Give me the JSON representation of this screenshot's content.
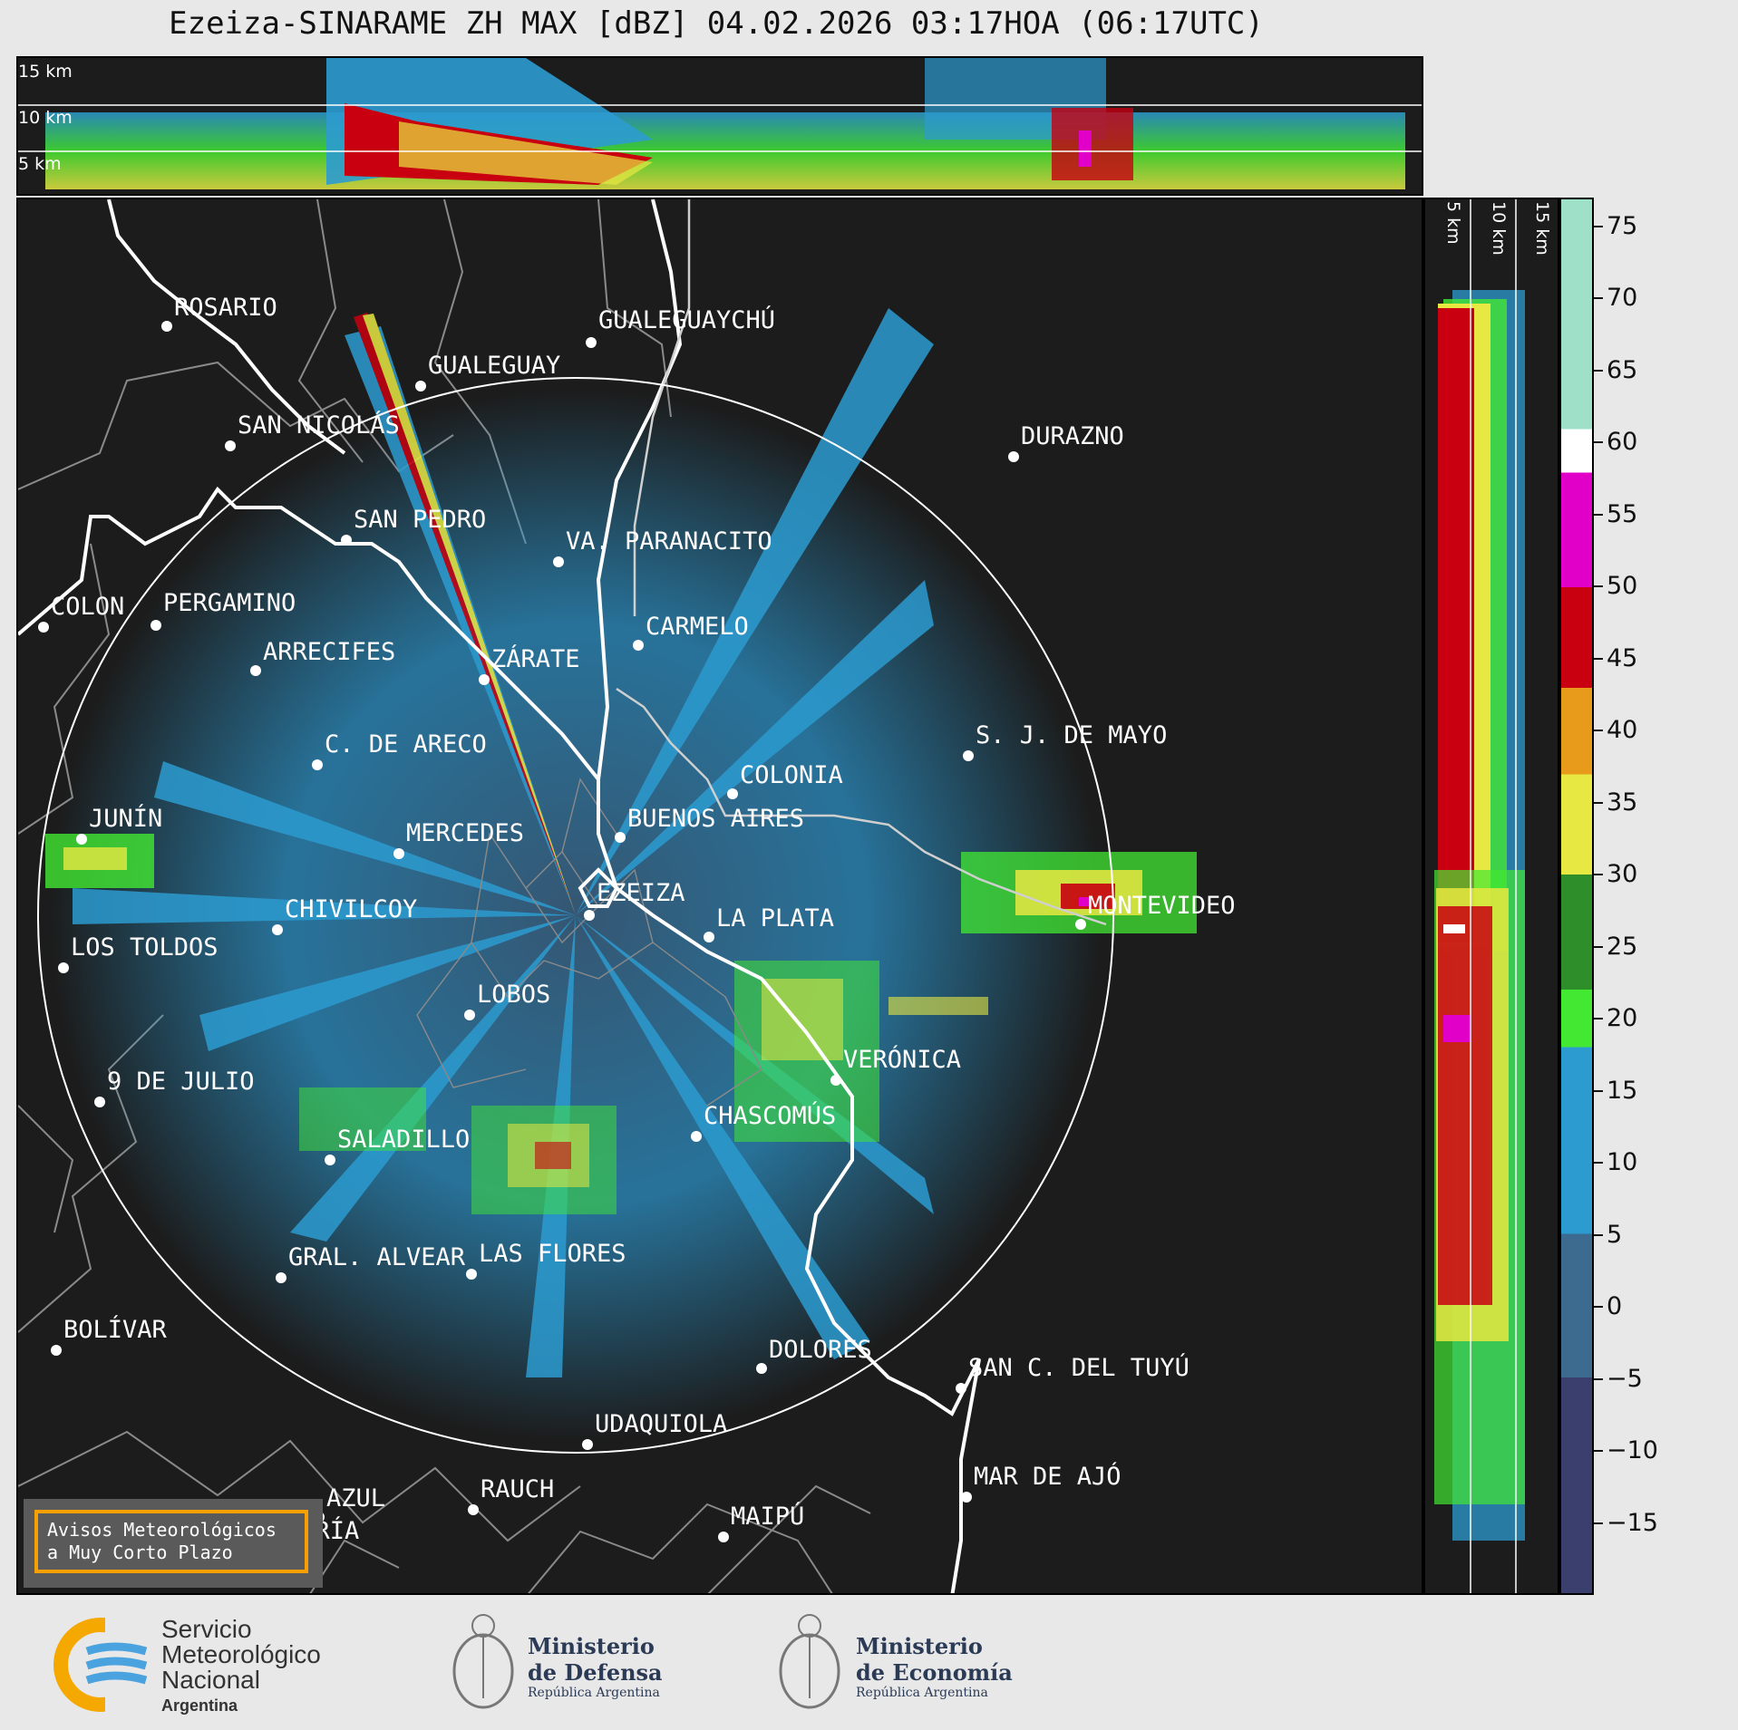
{
  "title": "Ezeiza-SINARAME ZH MAX [dBZ] 04.02.2026 03:17HOA (06:17UTC)",
  "top_panel_labels": [
    "15 km",
    "10 km",
    "5 km"
  ],
  "side_panel_labels": [
    "5 km",
    "10 km",
    "15 km"
  ],
  "cities": [
    {
      "name": "ROSARIO"
    },
    {
      "name": "GUALEGUAYCHÚ"
    },
    {
      "name": "GUALEGUAY"
    },
    {
      "name": "SAN NICOLÁS"
    },
    {
      "name": "DURAZNO"
    },
    {
      "name": "SAN PEDRO"
    },
    {
      "name": "VA. PARANACITO"
    },
    {
      "name": "COLON"
    },
    {
      "name": "PERGAMINO"
    },
    {
      "name": "CARMELO"
    },
    {
      "name": "ARRECIFES"
    },
    {
      "name": "ZÁRATE"
    },
    {
      "name": "C. DE ARECO"
    },
    {
      "name": "S. J. DE MAYO"
    },
    {
      "name": "COLONIA"
    },
    {
      "name": "JUNÍN"
    },
    {
      "name": "BUENOS AIRES"
    },
    {
      "name": "MERCEDES"
    },
    {
      "name": "EZEIZA"
    },
    {
      "name": "MONTEVIDEO"
    },
    {
      "name": "CHIVILCOY"
    },
    {
      "name": "LA PLATA"
    },
    {
      "name": "LOS TOLDOS"
    },
    {
      "name": "LOBOS"
    },
    {
      "name": "VERÓNICA"
    },
    {
      "name": "9 DE JULIO"
    },
    {
      "name": "CHASCOMÚS"
    },
    {
      "name": "SALADILLO"
    },
    {
      "name": "GRAL. ALVEAR"
    },
    {
      "name": "LAS FLORES"
    },
    {
      "name": "BOLÍVAR"
    },
    {
      "name": "DOLORES"
    },
    {
      "name": "SAN C. DEL TUYÚ"
    },
    {
      "name": "UDAQUIOLA"
    },
    {
      "name": "MAR DE AJÓ"
    },
    {
      "name": "AZUL"
    },
    {
      "name": "RAUCH"
    },
    {
      "name": "MAIPÚ"
    },
    {
      "name": "OLAVARRÍA"
    }
  ],
  "colorbar": {
    "unit": "dBZ",
    "ticks": [
      "75",
      "70",
      "65",
      "60",
      "55",
      "50",
      "45",
      "40",
      "35",
      "30",
      "25",
      "20",
      "15",
      "10",
      "5",
      "0",
      "−5",
      "−10",
      "−15"
    ],
    "stops": [
      {
        "from": -20,
        "to": -5,
        "color": "#3a3f6e"
      },
      {
        "from": -5,
        "to": 5,
        "color": "#3d6a8f"
      },
      {
        "from": 5,
        "to": 18,
        "color": "#2c9bd0"
      },
      {
        "from": 18,
        "to": 22,
        "color": "#42e832"
      },
      {
        "from": 22,
        "to": 30,
        "color": "#2e8f2a"
      },
      {
        "from": 30,
        "to": 37,
        "color": "#e8e842"
      },
      {
        "from": 37,
        "to": 43,
        "color": "#e89a1a"
      },
      {
        "from": 43,
        "to": 50,
        "color": "#c80010"
      },
      {
        "from": 50,
        "to": 58,
        "color": "#e000c8"
      },
      {
        "from": 58,
        "to": 61,
        "color": "#ffffff"
      },
      {
        "from": 61,
        "to": 77,
        "color": "#9ee0c8"
      }
    ]
  },
  "aviso": {
    "line1": "Avisos Meteorológicos",
    "line2": "a Muy Corto Plazo"
  },
  "footer": {
    "smn": {
      "line1": "Servicio",
      "line2": "Meteorológico",
      "line3": "Nacional",
      "line4": "Argentina"
    },
    "defensa": {
      "line1": "Ministerio",
      "line2": "de Defensa",
      "line3": "República Argentina"
    },
    "economia": {
      "line1": "Ministerio",
      "line2": "de Economía",
      "line3": "República Argentina"
    }
  }
}
